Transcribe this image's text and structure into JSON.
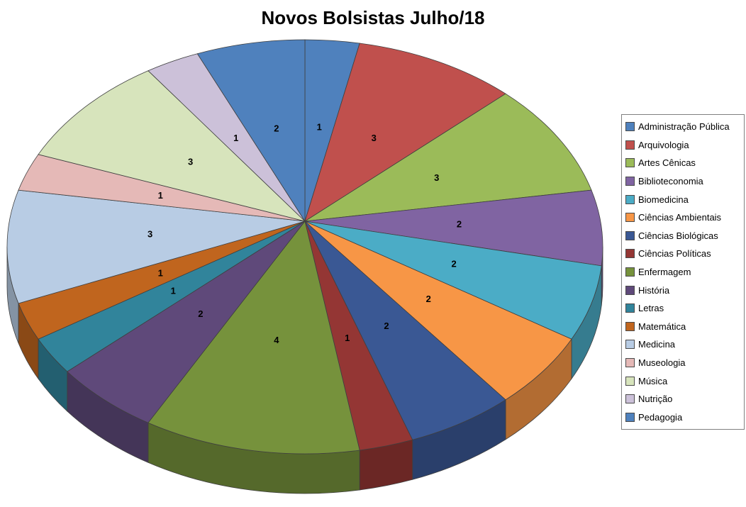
{
  "chart_data": {
    "type": "pie",
    "style": "3d",
    "title": "Novos Bolsistas Julho/18",
    "legend_position": "right",
    "data_labels": "value",
    "background_color": "#FFFFFF",
    "slices": [
      {
        "label": "Administração Pública",
        "value": 1,
        "color": "#4F81BD"
      },
      {
        "label": "Arquivologia",
        "value": 3,
        "color": "#C0504D"
      },
      {
        "label": "Artes Cênicas",
        "value": 3,
        "color": "#9BBB59"
      },
      {
        "label": "Biblioteconomia",
        "value": 2,
        "color": "#8064A2"
      },
      {
        "label": "Biomedicina",
        "value": 2,
        "color": "#4BACC6"
      },
      {
        "label": "Ciências Ambientais",
        "value": 2,
        "color": "#F79646"
      },
      {
        "label": "Ciências Biológicas",
        "value": 2,
        "color": "#3A5894"
      },
      {
        "label": "Ciências Políticas",
        "value": 1,
        "color": "#943634"
      },
      {
        "label": "Enfermagem",
        "value": 4,
        "color": "#76923C"
      },
      {
        "label": "História",
        "value": 2,
        "color": "#5F497A"
      },
      {
        "label": "Letras",
        "value": 1,
        "color": "#31849B"
      },
      {
        "label": "Matemática",
        "value": 1,
        "color": "#C0651E"
      },
      {
        "label": "Medicina",
        "value": 3,
        "color": "#B8CCE4"
      },
      {
        "label": "Museologia",
        "value": 1,
        "color": "#E5B9B7"
      },
      {
        "label": "Música",
        "value": 3,
        "color": "#D7E4BC"
      },
      {
        "label": "Nutrição",
        "value": 1,
        "color": "#CCC1D9"
      },
      {
        "label": "Pedagogia",
        "value": 2,
        "color": "#4F81BD"
      }
    ]
  }
}
